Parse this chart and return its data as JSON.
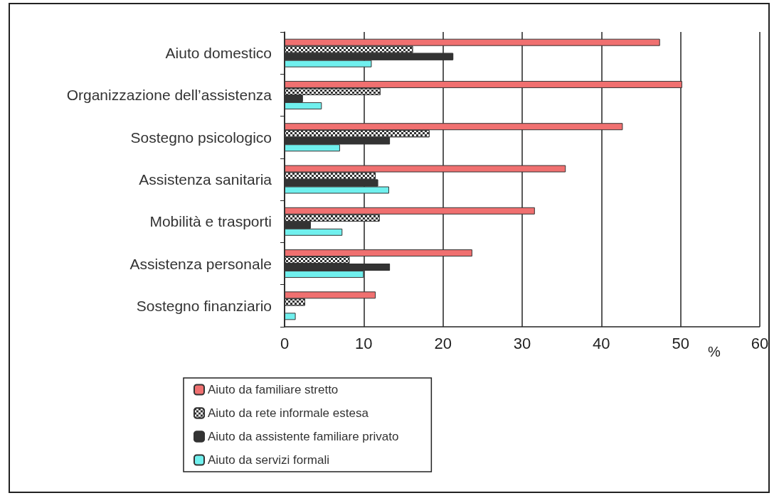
{
  "chart_data": {
    "type": "bar",
    "orientation": "horizontal",
    "xlabel": "%",
    "categories": [
      "Aiuto domestico",
      "Organizzazione dell’assistenza",
      "Sostegno psicologico",
      "Assistenza sanitaria",
      "Mobilità e trasporti",
      "Assistenza personale",
      "Sostegno finanziario"
    ],
    "series": [
      {
        "name": "Aiuto da familiare stretto",
        "color": "#f07070",
        "values": [
          47.4,
          50.2,
          42.7,
          35.5,
          31.6,
          23.7,
          11.5
        ]
      },
      {
        "name": "Aiuto da rete informale estesa",
        "color": "#333333",
        "values": [
          16.2,
          12.1,
          18.3,
          11.5,
          12.0,
          8.2,
          2.6
        ]
      },
      {
        "name": "Aiuto da assistente familiare privato",
        "color": "#333333",
        "values": [
          21.3,
          2.3,
          13.3,
          11.8,
          3.3,
          13.3,
          null
        ]
      },
      {
        "name": "Aiuto da servizi formali",
        "color": "#70f0ee",
        "values": [
          11.0,
          4.7,
          7.0,
          13.2,
          7.3,
          10.0,
          1.4
        ]
      }
    ],
    "xlim": [
      0,
      60
    ],
    "xticks": [
      0,
      10,
      20,
      30,
      40,
      50,
      60
    ],
    "grid": "x",
    "legend": "bottom"
  }
}
